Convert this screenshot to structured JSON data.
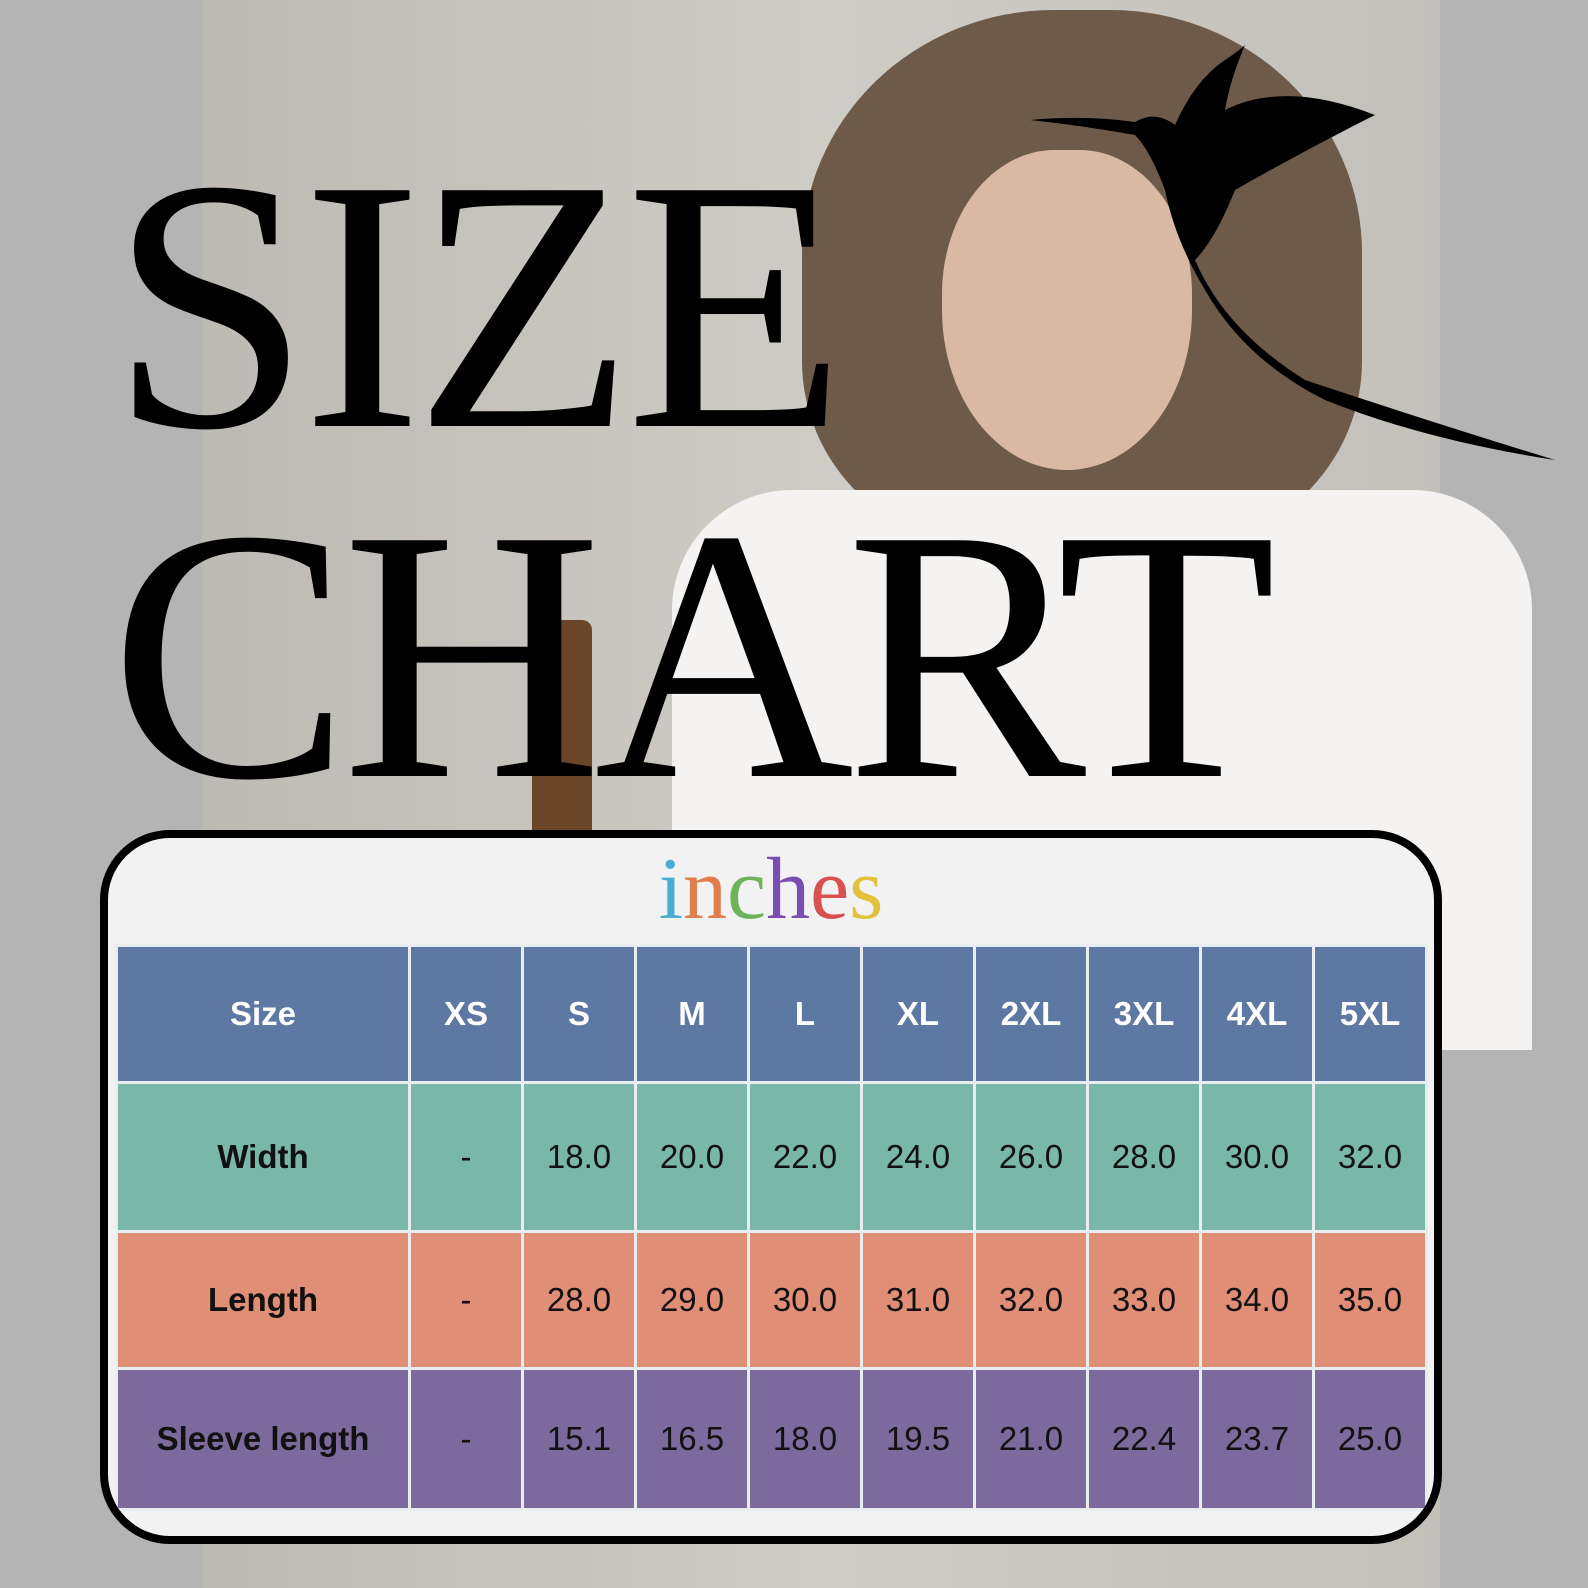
{
  "title": {
    "line1": "SIZE",
    "line2": "CHART"
  },
  "unit": {
    "letters": [
      "i",
      "n",
      "c",
      "h",
      "e",
      "s"
    ],
    "colors": [
      "#4aaed3",
      "#e07f4c",
      "#6db35a",
      "#7a4db3",
      "#d9504f",
      "#e2c23c"
    ]
  },
  "table": {
    "header_label": "Size",
    "sizes": [
      "XS",
      "S",
      "M",
      "L",
      "XL",
      "2XL",
      "3XL",
      "4XL",
      "5XL"
    ],
    "rows": [
      {
        "label": "Width",
        "values": [
          "-",
          "18.0",
          "20.0",
          "22.0",
          "24.0",
          "26.0",
          "28.0",
          "30.0",
          "32.0"
        ]
      },
      {
        "label": "Length",
        "values": [
          "-",
          "28.0",
          "29.0",
          "30.0",
          "31.0",
          "32.0",
          "33.0",
          "34.0",
          "35.0"
        ]
      },
      {
        "label": "Sleeve length",
        "values": [
          "-",
          "15.1",
          "16.5",
          "18.0",
          "19.5",
          "21.0",
          "22.4",
          "23.7",
          "25.0"
        ]
      }
    ],
    "colors": {
      "header": "#5d79a3",
      "width": "#79b7a8",
      "length": "#e08e75",
      "sleeve": "#7b6a9b"
    }
  }
}
